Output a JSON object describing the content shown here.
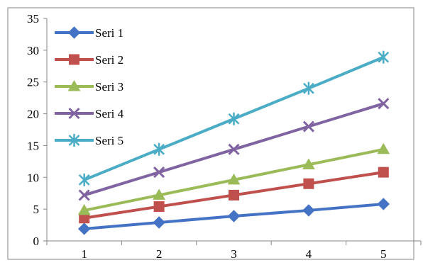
{
  "chart_data": {
    "type": "line",
    "x": [
      1,
      2,
      3,
      4,
      5
    ],
    "xlabel": "",
    "ylabel": "",
    "title": "",
    "ylim": [
      0,
      35
    ],
    "y_ticks": [
      0,
      5,
      10,
      15,
      20,
      25,
      30,
      35
    ],
    "x_ticks": [
      1,
      2,
      3,
      4,
      5
    ],
    "grid": false,
    "legend_position": "top-left",
    "series": [
      {
        "name": "Seri 1",
        "values": [
          1.9,
          2.9,
          3.9,
          4.8,
          5.8
        ],
        "color": "#4472C4",
        "marker": "diamond"
      },
      {
        "name": "Seri 2",
        "values": [
          3.6,
          5.4,
          7.2,
          9.0,
          10.8
        ],
        "color": "#C0504D",
        "marker": "square"
      },
      {
        "name": "Seri 3",
        "values": [
          4.8,
          7.2,
          9.6,
          12.0,
          14.4
        ],
        "color": "#9BBB59",
        "marker": "triangle"
      },
      {
        "name": "Seri 4",
        "values": [
          7.2,
          10.8,
          14.4,
          18.0,
          21.6
        ],
        "color": "#8064A2",
        "marker": "x"
      },
      {
        "name": "Seri 5",
        "values": [
          9.6,
          14.4,
          19.2,
          24.0,
          28.9
        ],
        "color": "#4BACC6",
        "marker": "star"
      }
    ]
  }
}
